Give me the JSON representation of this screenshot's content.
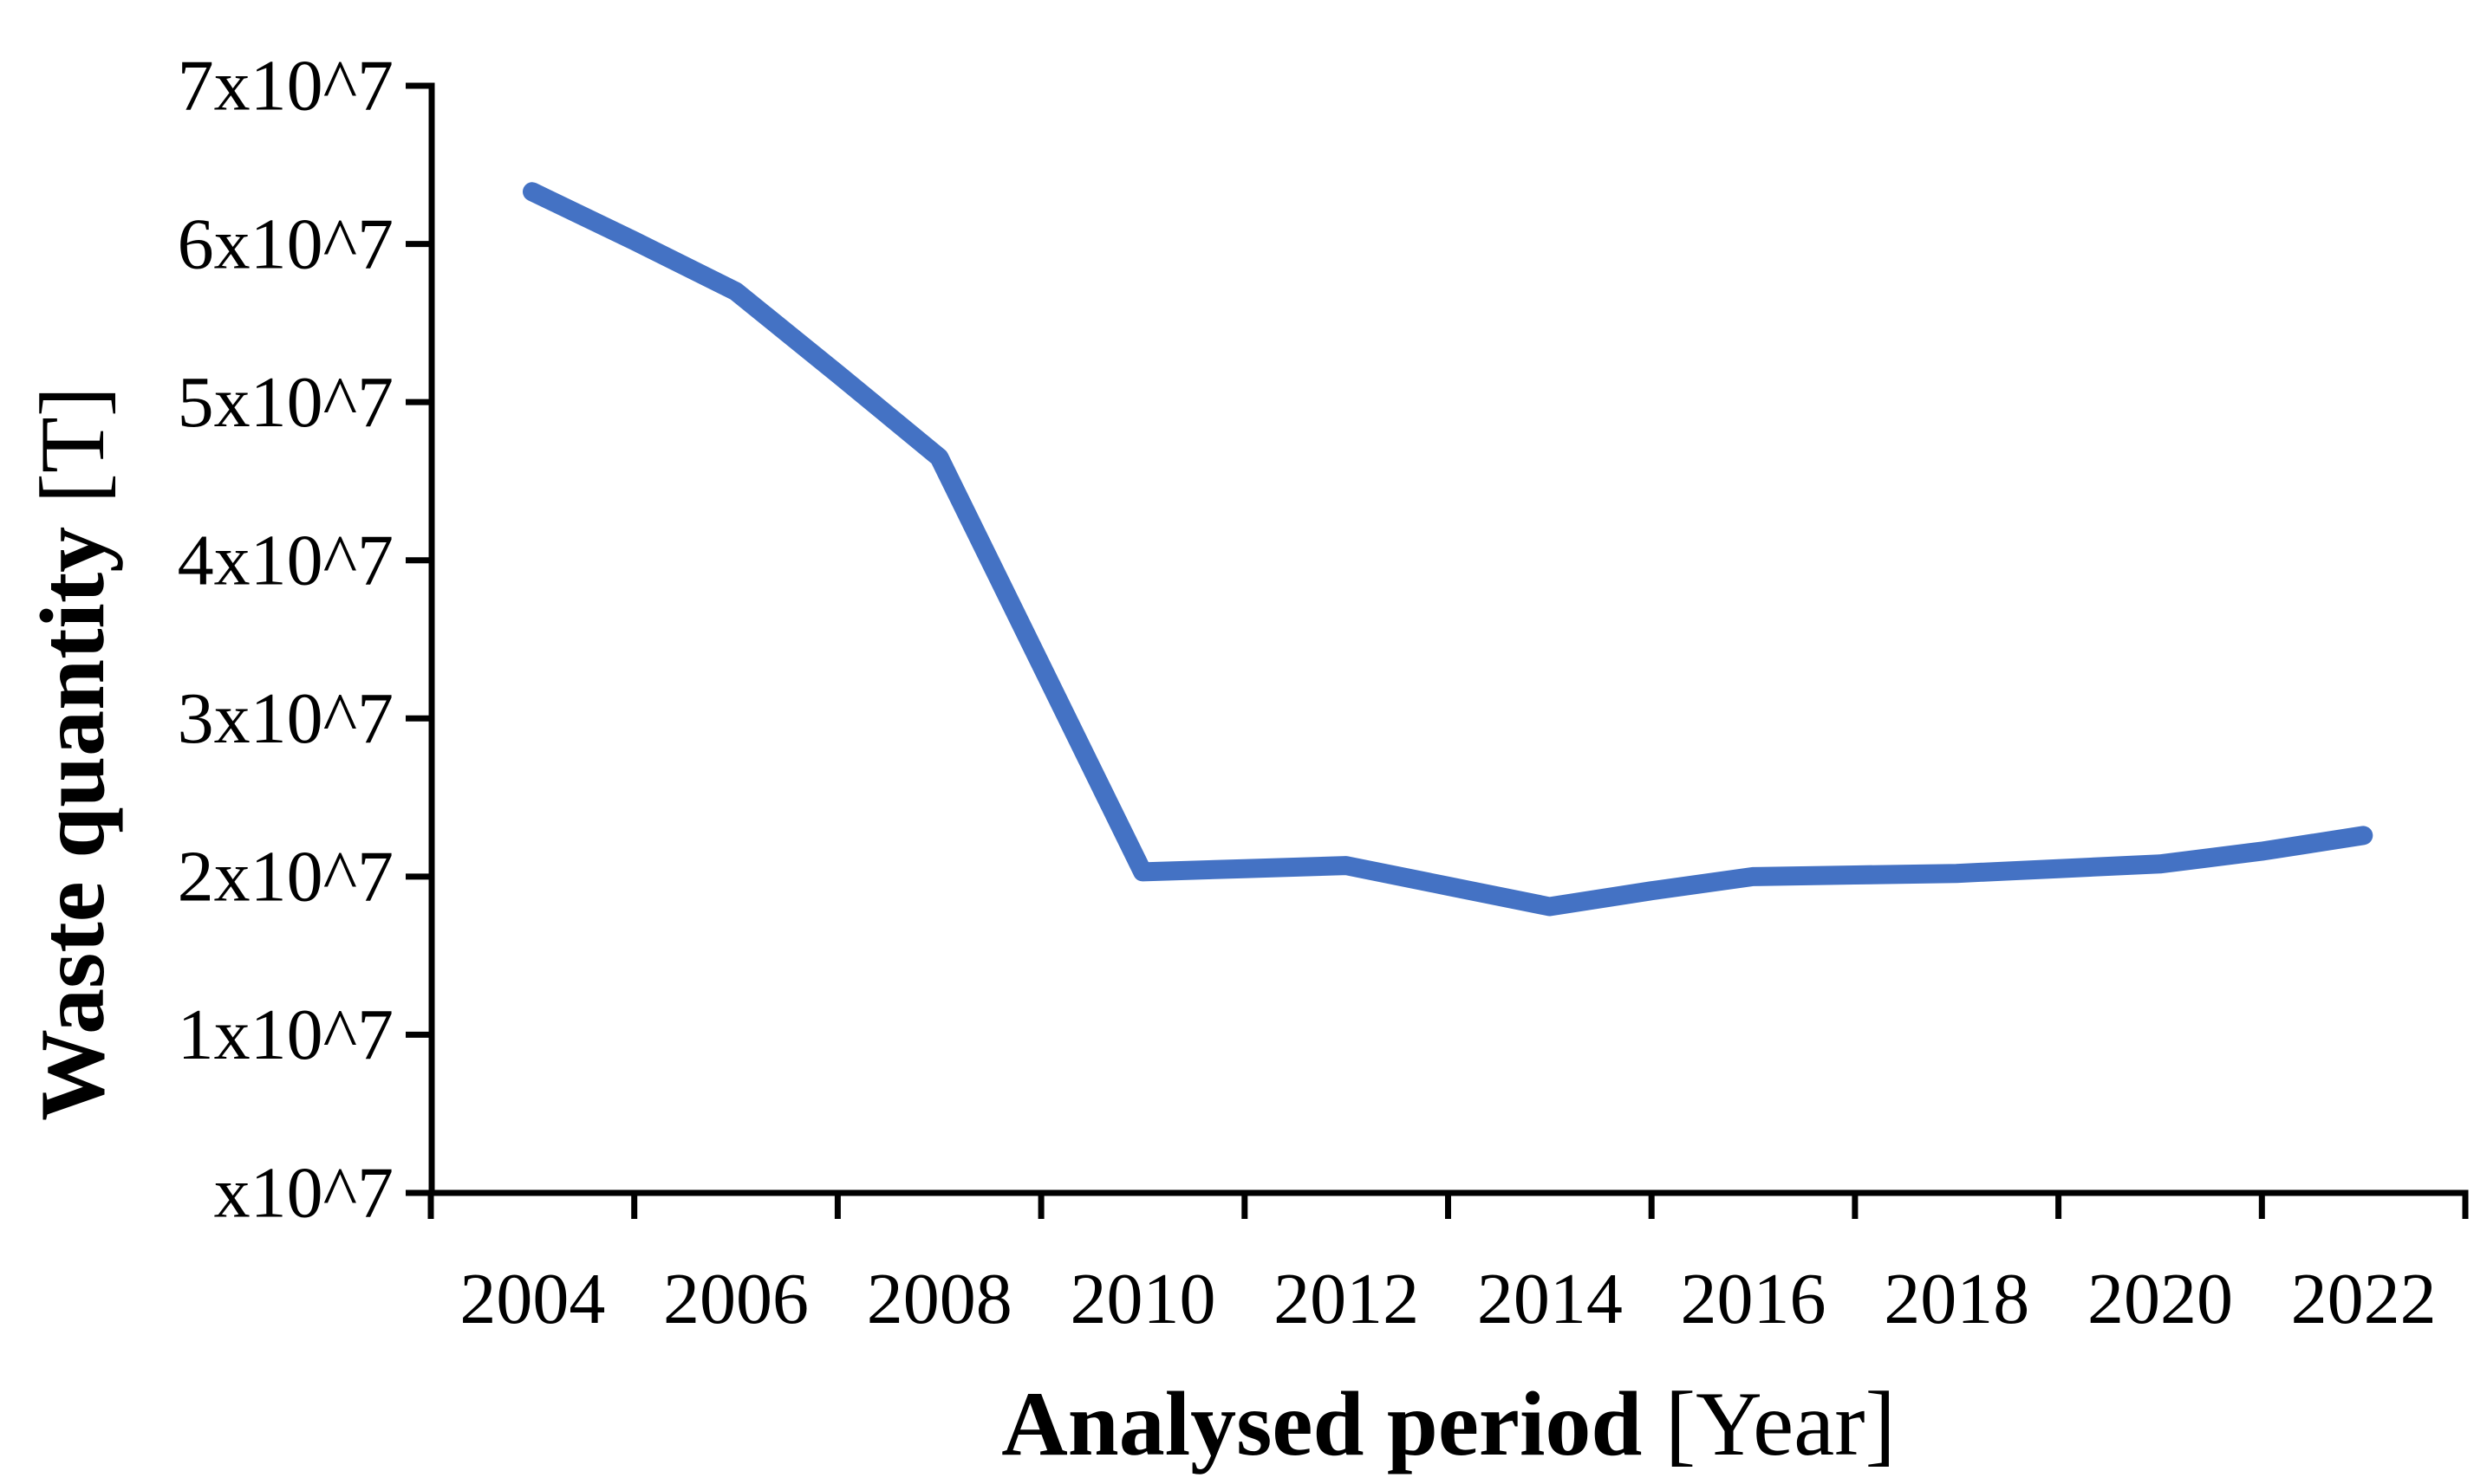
{
  "chart_data": {
    "type": "line",
    "title": "",
    "x": [
      2004,
      2005,
      2006,
      2007,
      2008,
      2009,
      2010,
      2011,
      2012,
      2013,
      2014,
      2015,
      2016,
      2017,
      2018,
      2019,
      2020,
      2021,
      2022
    ],
    "series": [
      {
        "name": "Waste quantity",
        "values": [
          63300000,
          60200000,
          57000000,
          51800000,
          46500000,
          33400000,
          20300000,
          20500000,
          20700000,
          19400000,
          18100000,
          19100000,
          20000000,
          20100000,
          20200000,
          20500000,
          20800000,
          21600000,
          22600000
        ]
      }
    ],
    "xlabel_bold": "Analysed period",
    "xlabel_unit": "[Year]",
    "ylabel_bold": "Waste quantity",
    "ylabel_unit": "[T]",
    "x_tick_labels": [
      "2004",
      "2006",
      "2008",
      "2010",
      "2012",
      "2014",
      "2016",
      "2018",
      "2020",
      "2022"
    ],
    "y_tick_labels": [
      "x10^7",
      "1x10^7",
      "2x10^7",
      "3x10^7",
      "4x10^7",
      "5x10^7",
      "6x10^7",
      "7x10^7"
    ],
    "ylim": [
      0,
      70000000
    ],
    "y_unit_step": 10000000,
    "grid": false,
    "legend": "none",
    "line_color": "#4472C4",
    "axis_color": "#000000"
  }
}
